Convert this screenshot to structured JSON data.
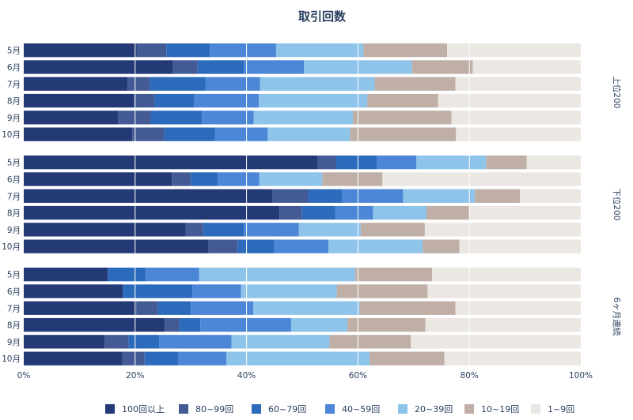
{
  "chart_data": {
    "type": "bar",
    "orientation": "horizontal",
    "stacking": "percent",
    "title": "取引回数",
    "xlim": [
      0,
      100
    ],
    "x_ticks": [
      "0%",
      "20%",
      "40%",
      "60%",
      "80%",
      "100%"
    ],
    "legend_position": "bottom",
    "categories": [
      "5月",
      "6月",
      "7月",
      "8月",
      "9月",
      "10月"
    ],
    "series": [
      {
        "name": "100回以上",
        "color": "#243a76"
      },
      {
        "name": "80~99回",
        "color": "#435a94"
      },
      {
        "name": "60~79回",
        "color": "#2c6bbb"
      },
      {
        "name": "40~59回",
        "color": "#4c86d6"
      },
      {
        "name": "20~39回",
        "color": "#8ec3ea"
      },
      {
        "name": "10~19回",
        "color": "#bfafa6"
      },
      {
        "name": "1~9回",
        "color": "#ebe7e2"
      }
    ],
    "facets": [
      {
        "label": "上位200",
        "rows": [
          [
            20.3,
            5.3,
            7.8,
            11.9,
            15.7,
            15.0,
            24.0
          ],
          [
            26.8,
            4.4,
            8.3,
            10.8,
            19.4,
            10.9,
            19.4
          ],
          [
            18.6,
            4.1,
            9.9,
            9.8,
            20.6,
            14.5,
            22.5
          ],
          [
            19.8,
            3.7,
            7.1,
            11.6,
            19.5,
            12.7,
            25.6
          ],
          [
            16.9,
            5.9,
            9.2,
            9.3,
            17.8,
            17.7,
            23.2
          ],
          [
            19.5,
            5.7,
            9.1,
            9.5,
            14.8,
            19.0,
            22.4
          ]
        ]
      },
      {
        "label": "下位200",
        "rows": [
          [
            52.8,
            3.3,
            7.3,
            7.1,
            12.5,
            7.3,
            9.7
          ],
          [
            26.6,
            3.4,
            4.8,
            7.5,
            11.3,
            10.8,
            35.6
          ],
          [
            44.6,
            6.4,
            6.2,
            10.9,
            12.9,
            8.1,
            10.9
          ],
          [
            45.9,
            4.0,
            6.0,
            6.8,
            9.6,
            7.7,
            20.0
          ],
          [
            29.1,
            3.1,
            7.3,
            9.9,
            11.1,
            11.5,
            28.0
          ],
          [
            33.1,
            5.3,
            6.6,
            9.7,
            16.9,
            6.6,
            21.8
          ]
        ]
      },
      {
        "label": "6ヶ月連続",
        "rows": [
          [
            15.1,
            0.0,
            6.8,
            9.6,
            28.0,
            13.8,
            26.7
          ],
          [
            17.8,
            0.0,
            12.5,
            8.7,
            17.2,
            16.3,
            27.5
          ],
          [
            20.2,
            3.9,
            5.9,
            11.2,
            19.1,
            17.2,
            22.5
          ],
          [
            25.3,
            2.6,
            3.8,
            16.3,
            10.1,
            14.0,
            27.9
          ],
          [
            14.5,
            4.3,
            5.5,
            13.0,
            17.6,
            14.6,
            30.5
          ],
          [
            17.7,
            4.0,
            6.1,
            8.6,
            25.7,
            13.4,
            24.5
          ]
        ]
      }
    ]
  }
}
